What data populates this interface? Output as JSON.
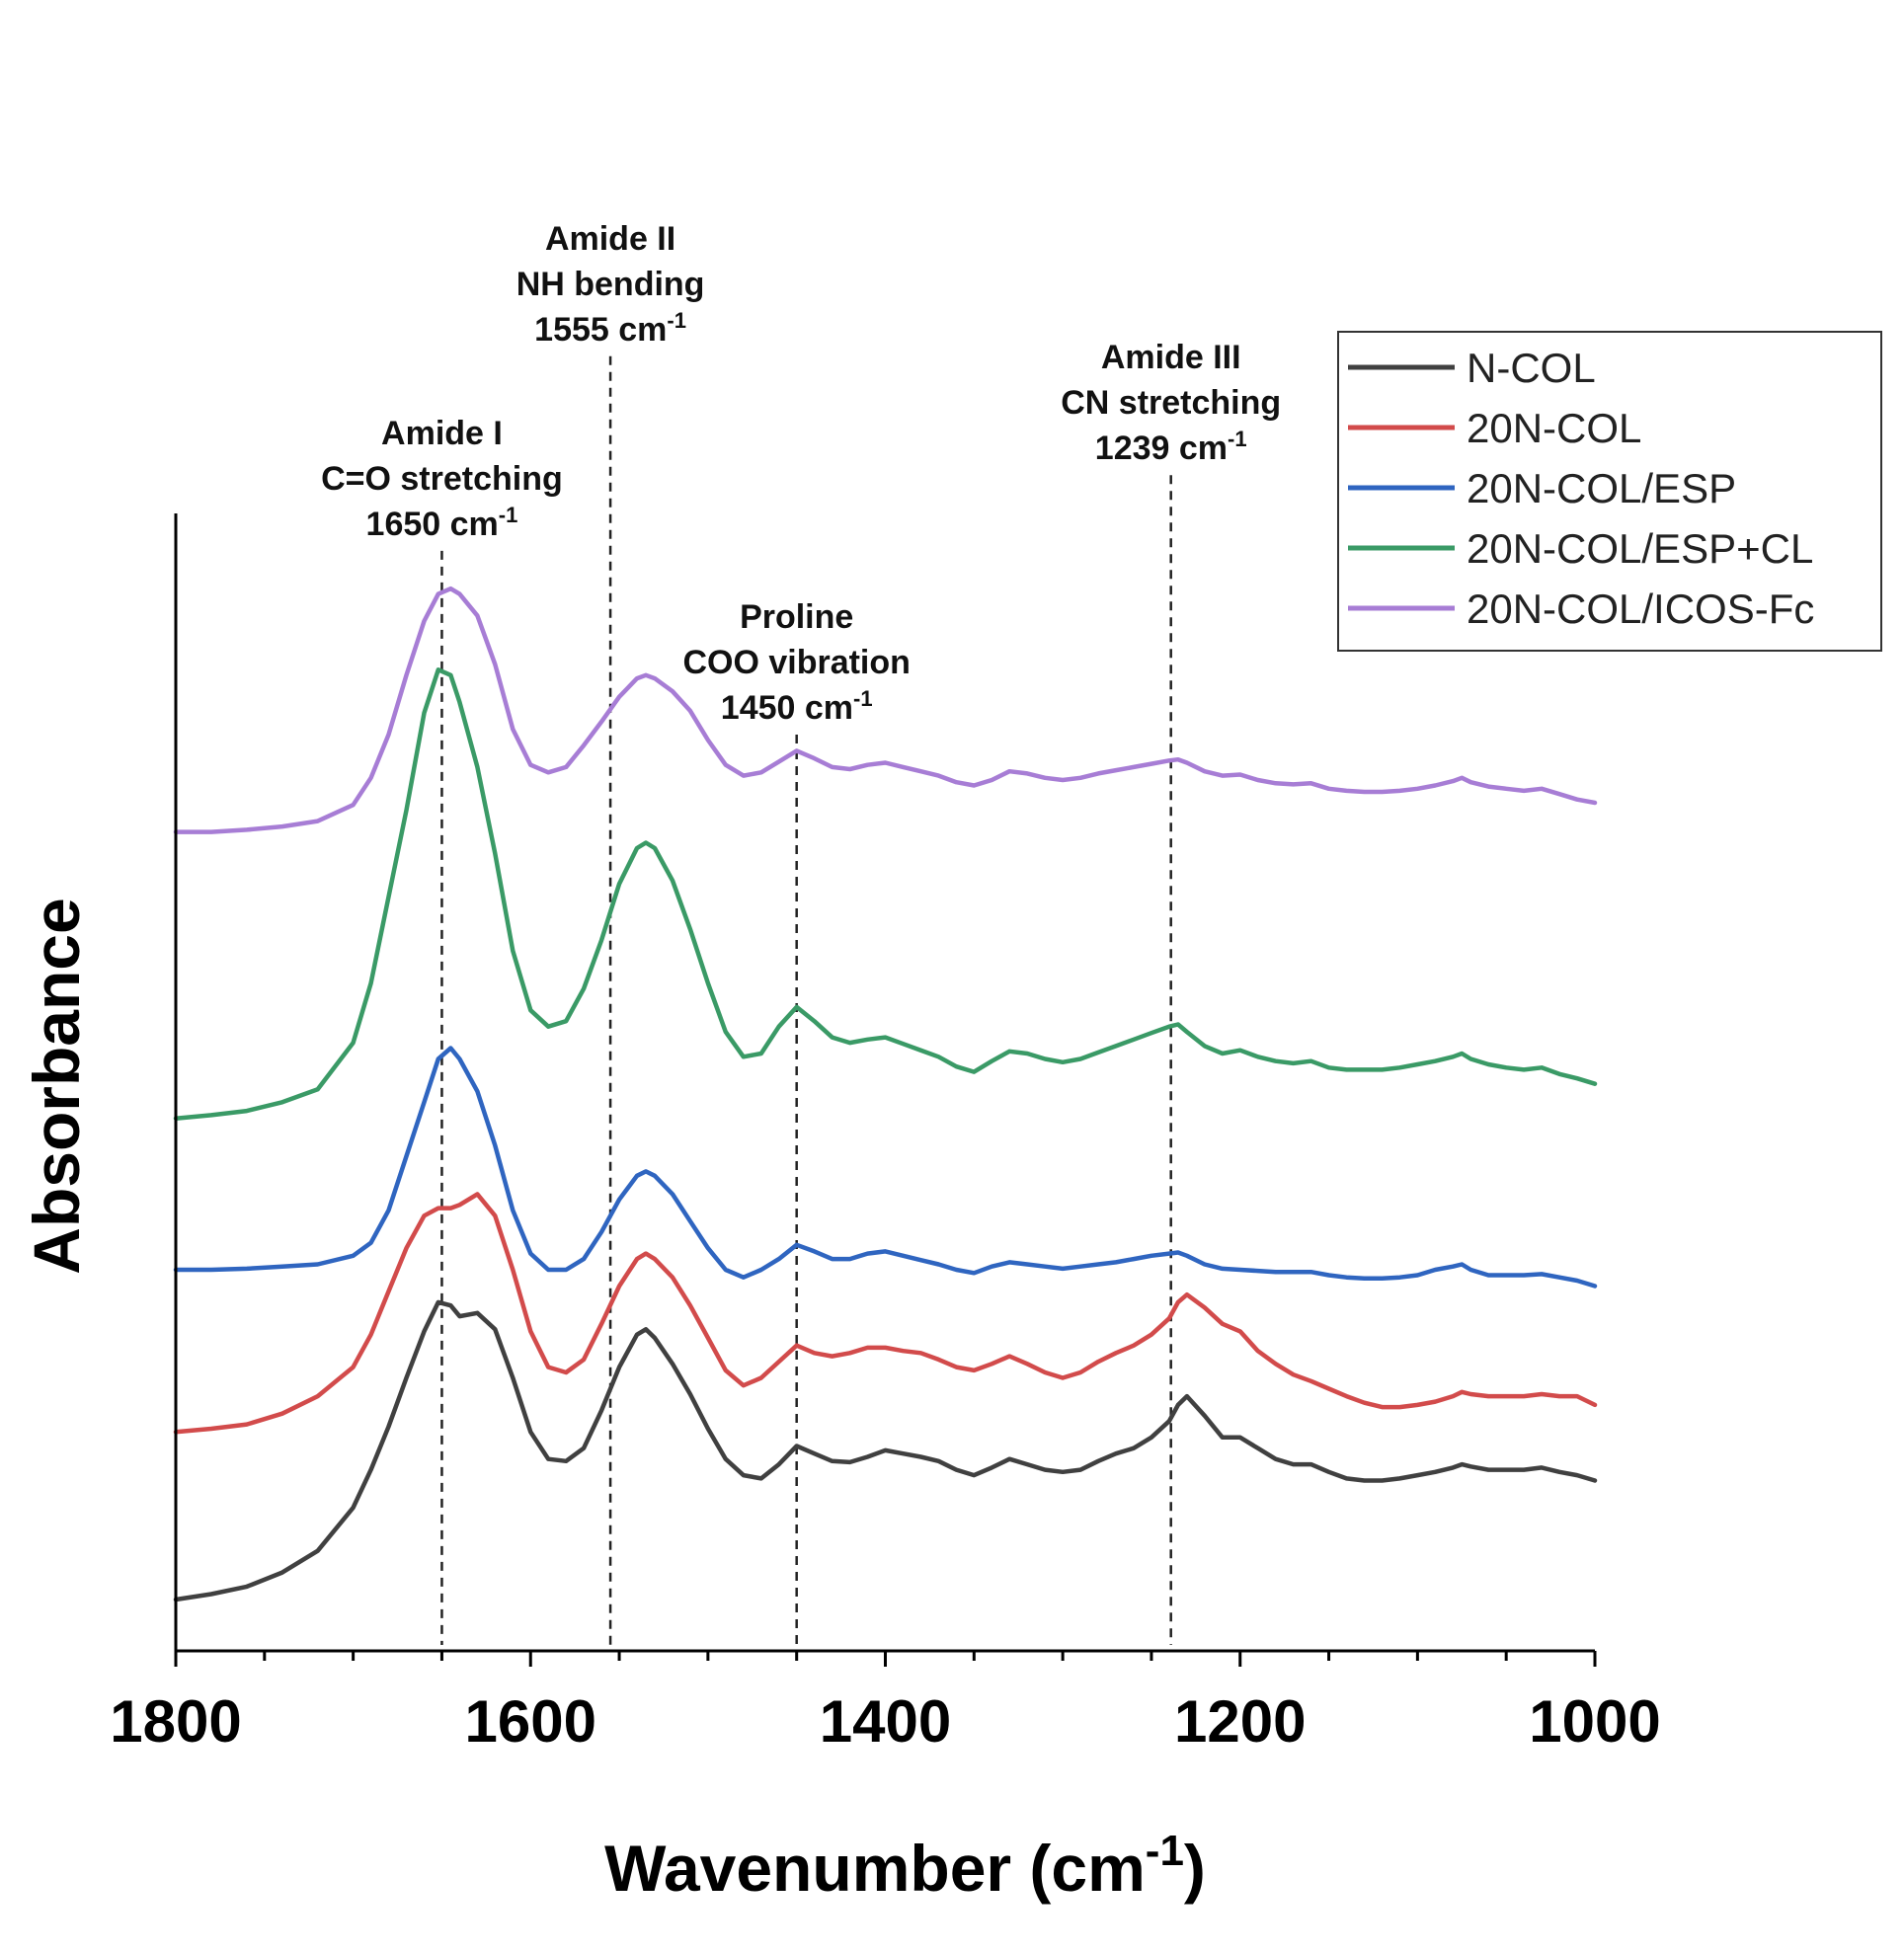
{
  "chart_data": {
    "type": "line",
    "title": "",
    "xlabel": "Wavenumber (cm",
    "xlabel_sup": "-1",
    "xlabel_end": ")",
    "ylabel": "Absorbance",
    "xlim": [
      1800,
      1000
    ],
    "ylim": [
      0,
      10
    ],
    "x_reversed": true,
    "x_ticks": [
      "1800",
      "1600",
      "1400",
      "1200",
      "1000"
    ],
    "x_tick_values": [
      1800,
      1600,
      1400,
      1200,
      1000
    ],
    "grid": false,
    "legend_position": "top-right",
    "x": [
      1800,
      1780,
      1760,
      1740,
      1720,
      1700,
      1690,
      1680,
      1670,
      1660,
      1652,
      1645,
      1640,
      1630,
      1620,
      1610,
      1600,
      1590,
      1580,
      1570,
      1560,
      1550,
      1540,
      1535,
      1530,
      1520,
      1510,
      1500,
      1490,
      1480,
      1470,
      1460,
      1450,
      1440,
      1430,
      1420,
      1410,
      1400,
      1390,
      1380,
      1370,
      1360,
      1350,
      1340,
      1330,
      1320,
      1310,
      1300,
      1290,
      1280,
      1270,
      1260,
      1250,
      1240,
      1235,
      1230,
      1220,
      1210,
      1200,
      1190,
      1180,
      1170,
      1160,
      1150,
      1140,
      1130,
      1120,
      1110,
      1100,
      1090,
      1080,
      1075,
      1070,
      1060,
      1050,
      1040,
      1030,
      1020,
      1010,
      1000
    ],
    "series": [
      {
        "name": "N-COL",
        "color": "#404040",
        "values": [
          0.0,
          0.05,
          0.12,
          0.25,
          0.45,
          0.85,
          1.2,
          1.6,
          2.05,
          2.48,
          2.75,
          2.72,
          2.62,
          2.65,
          2.5,
          2.05,
          1.55,
          1.3,
          1.28,
          1.4,
          1.75,
          2.15,
          2.45,
          2.5,
          2.42,
          2.18,
          1.9,
          1.58,
          1.3,
          1.15,
          1.12,
          1.25,
          1.42,
          1.35,
          1.28,
          1.27,
          1.32,
          1.38,
          1.35,
          1.32,
          1.28,
          1.2,
          1.15,
          1.22,
          1.3,
          1.25,
          1.2,
          1.18,
          1.2,
          1.28,
          1.35,
          1.4,
          1.5,
          1.65,
          1.8,
          1.88,
          1.7,
          1.5,
          1.5,
          1.4,
          1.3,
          1.25,
          1.25,
          1.18,
          1.12,
          1.1,
          1.1,
          1.12,
          1.15,
          1.18,
          1.22,
          1.25,
          1.23,
          1.2,
          1.2,
          1.2,
          1.22,
          1.18,
          1.15,
          1.1
        ]
      },
      {
        "name": "20N-COL",
        "color": "#d24b4b",
        "values": [
          1.55,
          1.58,
          1.62,
          1.72,
          1.88,
          2.15,
          2.45,
          2.85,
          3.25,
          3.55,
          3.62,
          3.62,
          3.65,
          3.75,
          3.55,
          3.05,
          2.48,
          2.15,
          2.1,
          2.22,
          2.55,
          2.9,
          3.15,
          3.2,
          3.15,
          2.98,
          2.72,
          2.42,
          2.12,
          1.98,
          2.05,
          2.2,
          2.35,
          2.28,
          2.25,
          2.28,
          2.33,
          2.33,
          2.3,
          2.28,
          2.22,
          2.15,
          2.12,
          2.18,
          2.25,
          2.18,
          2.1,
          2.05,
          2.1,
          2.2,
          2.28,
          2.35,
          2.45,
          2.6,
          2.75,
          2.82,
          2.7,
          2.55,
          2.48,
          2.3,
          2.18,
          2.08,
          2.02,
          1.95,
          1.88,
          1.82,
          1.78,
          1.78,
          1.8,
          1.83,
          1.88,
          1.92,
          1.9,
          1.88,
          1.88,
          1.88,
          1.9,
          1.88,
          1.88,
          1.8
        ]
      },
      {
        "name": "20N-COL/ESP",
        "color": "#2f65c0",
        "values": [
          3.05,
          3.05,
          3.06,
          3.08,
          3.1,
          3.18,
          3.3,
          3.6,
          4.1,
          4.6,
          5.0,
          5.1,
          5.0,
          4.7,
          4.2,
          3.6,
          3.2,
          3.05,
          3.05,
          3.15,
          3.4,
          3.7,
          3.92,
          3.96,
          3.92,
          3.75,
          3.5,
          3.25,
          3.05,
          2.98,
          3.05,
          3.15,
          3.28,
          3.22,
          3.15,
          3.15,
          3.2,
          3.22,
          3.18,
          3.14,
          3.1,
          3.05,
          3.02,
          3.08,
          3.12,
          3.1,
          3.08,
          3.06,
          3.08,
          3.1,
          3.12,
          3.15,
          3.18,
          3.2,
          3.21,
          3.18,
          3.1,
          3.06,
          3.05,
          3.04,
          3.03,
          3.03,
          3.03,
          3.0,
          2.98,
          2.97,
          2.97,
          2.98,
          3.0,
          3.05,
          3.08,
          3.1,
          3.05,
          3.0,
          3.0,
          3.0,
          3.01,
          2.98,
          2.95,
          2.9
        ]
      },
      {
        "name": "20N-COL/ESP+CL",
        "color": "#3a9a66",
        "values": [
          4.45,
          4.48,
          4.52,
          4.6,
          4.72,
          5.15,
          5.7,
          6.5,
          7.3,
          8.2,
          8.6,
          8.55,
          8.3,
          7.7,
          6.9,
          6.0,
          5.45,
          5.3,
          5.35,
          5.65,
          6.1,
          6.62,
          6.95,
          7.0,
          6.95,
          6.65,
          6.2,
          5.7,
          5.25,
          5.02,
          5.05,
          5.3,
          5.48,
          5.35,
          5.2,
          5.15,
          5.18,
          5.2,
          5.14,
          5.08,
          5.02,
          4.93,
          4.88,
          4.98,
          5.07,
          5.05,
          5.0,
          4.97,
          5.0,
          5.06,
          5.12,
          5.18,
          5.24,
          5.3,
          5.32,
          5.25,
          5.12,
          5.05,
          5.08,
          5.02,
          4.98,
          4.96,
          4.98,
          4.92,
          4.9,
          4.9,
          4.9,
          4.92,
          4.95,
          4.98,
          5.02,
          5.05,
          5.0,
          4.95,
          4.92,
          4.9,
          4.92,
          4.86,
          4.82,
          4.77
        ]
      },
      {
        "name": "20N-COL/ICOS-Fc",
        "color": "#a77dd5",
        "values": [
          7.1,
          7.1,
          7.12,
          7.15,
          7.2,
          7.35,
          7.6,
          8.0,
          8.55,
          9.05,
          9.3,
          9.35,
          9.3,
          9.1,
          8.65,
          8.05,
          7.72,
          7.65,
          7.7,
          7.9,
          8.12,
          8.35,
          8.52,
          8.55,
          8.52,
          8.4,
          8.22,
          7.95,
          7.72,
          7.62,
          7.65,
          7.75,
          7.85,
          7.78,
          7.7,
          7.68,
          7.72,
          7.74,
          7.7,
          7.66,
          7.62,
          7.56,
          7.53,
          7.58,
          7.66,
          7.64,
          7.6,
          7.58,
          7.6,
          7.64,
          7.67,
          7.7,
          7.73,
          7.76,
          7.77,
          7.74,
          7.66,
          7.62,
          7.63,
          7.58,
          7.55,
          7.54,
          7.55,
          7.5,
          7.48,
          7.47,
          7.47,
          7.48,
          7.5,
          7.53,
          7.57,
          7.6,
          7.56,
          7.52,
          7.5,
          7.48,
          7.5,
          7.45,
          7.4,
          7.37
        ]
      }
    ],
    "annotations": [
      {
        "x": 1650,
        "lines": [
          "Amide I",
          "C=O stretching",
          "1650 cm"
        ],
        "sup": "-1",
        "top_value": 9.7
      },
      {
        "x": 1555,
        "lines": [
          "Amide II",
          "NH bending",
          "1555 cm"
        ],
        "sup": "-1",
        "top_value": 11.5
      },
      {
        "x": 1450,
        "lines": [
          "Proline",
          "COO vibration",
          "1450 cm"
        ],
        "sup": "-1",
        "top_value": 8.0
      },
      {
        "x": 1239,
        "lines": [
          "Amide III",
          "CN stretching",
          "1239 cm"
        ],
        "sup": "-1",
        "top_value": 10.4
      }
    ]
  }
}
